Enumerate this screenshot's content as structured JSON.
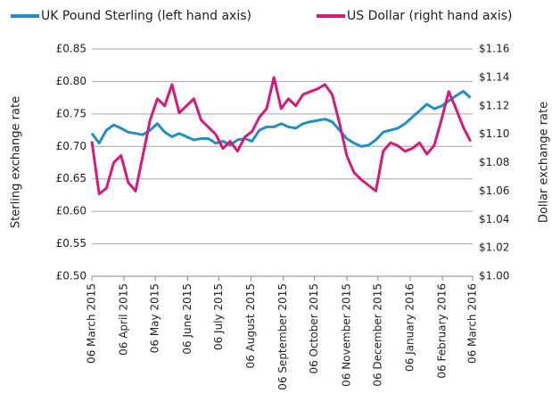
{
  "chart_data": {
    "type": "line",
    "y_label": "Sterling exchange rate",
    "y2_label": "Dollar exchange rate",
    "x": [
      "2015-03-06",
      "2015-03-13",
      "2015-03-20",
      "2015-03-27",
      "2015-04-03",
      "2015-04-10",
      "2015-04-17",
      "2015-04-24",
      "2015-05-01",
      "2015-05-08",
      "2015-05-15",
      "2015-05-22",
      "2015-05-29",
      "2015-06-05",
      "2015-06-12",
      "2015-06-19",
      "2015-06-26",
      "2015-07-03",
      "2015-07-10",
      "2015-07-17",
      "2015-07-24",
      "2015-07-31",
      "2015-08-07",
      "2015-08-14",
      "2015-08-21",
      "2015-08-28",
      "2015-09-04",
      "2015-09-11",
      "2015-09-18",
      "2015-09-25",
      "2015-10-02",
      "2015-10-09",
      "2015-10-16",
      "2015-10-23",
      "2015-10-30",
      "2015-11-06",
      "2015-11-13",
      "2015-11-20",
      "2015-11-27",
      "2015-12-04",
      "2015-12-11",
      "2015-12-18",
      "2015-12-25",
      "2016-01-01",
      "2016-01-08",
      "2016-01-15",
      "2016-01-22",
      "2016-01-29",
      "2016-02-05",
      "2016-02-12",
      "2016-02-19",
      "2016-02-26",
      "2016-03-04"
    ],
    "series": [
      {
        "name": "UK Pound Sterling (left hand axis)",
        "color": "#1f8fc9",
        "axis": "y",
        "values": [
          0.72,
          0.705,
          0.725,
          0.733,
          0.728,
          0.722,
          0.72,
          0.718,
          0.725,
          0.735,
          0.722,
          0.715,
          0.72,
          0.715,
          0.71,
          0.712,
          0.712,
          0.705,
          0.708,
          0.702,
          0.71,
          0.712,
          0.708,
          0.725,
          0.73,
          0.73,
          0.735,
          0.73,
          0.728,
          0.735,
          0.738,
          0.74,
          0.742,
          0.738,
          0.725,
          0.712,
          0.705,
          0.7,
          0.702,
          0.71,
          0.722,
          0.725,
          0.728,
          0.735,
          0.745,
          0.755,
          0.765,
          0.758,
          0.762,
          0.77,
          0.778,
          0.785,
          0.775
        ]
      },
      {
        "name": "US Dollar (right hand axis)",
        "color": "#d6197b",
        "axis": "y2",
        "values": [
          1.095,
          1.058,
          1.062,
          1.08,
          1.085,
          1.066,
          1.06,
          1.085,
          1.11,
          1.125,
          1.12,
          1.135,
          1.115,
          1.12,
          1.125,
          1.11,
          1.105,
          1.1,
          1.09,
          1.095,
          1.088,
          1.098,
          1.102,
          1.112,
          1.118,
          1.14,
          1.118,
          1.125,
          1.12,
          1.128,
          1.13,
          1.132,
          1.135,
          1.128,
          1.108,
          1.085,
          1.073,
          1.068,
          1.064,
          1.06,
          1.088,
          1.094,
          1.092,
          1.088,
          1.09,
          1.094,
          1.086,
          1.092,
          1.11,
          1.13,
          1.118,
          1.105,
          1.095
        ]
      }
    ],
    "xlim": [
      "2015-03-06",
      "2016-03-06"
    ],
    "xticks": [
      {
        "value": "2015-03-06",
        "label": "06 March 2015"
      },
      {
        "value": "2015-04-06",
        "label": "06 April 2015"
      },
      {
        "value": "2015-05-06",
        "label": "06 May 2015"
      },
      {
        "value": "2015-06-06",
        "label": "06 June 2015"
      },
      {
        "value": "2015-07-06",
        "label": "06 July 2015"
      },
      {
        "value": "2015-08-06",
        "label": "06 August 2015"
      },
      {
        "value": "2015-09-06",
        "label": "06 September 2015"
      },
      {
        "value": "2015-10-06",
        "label": "06 October 2015"
      },
      {
        "value": "2015-11-06",
        "label": "06 November 2015"
      },
      {
        "value": "2015-12-06",
        "label": "06 December 2015"
      },
      {
        "value": "2016-01-06",
        "label": "06 January 2016"
      },
      {
        "value": "2016-02-06",
        "label": "06 February 2016"
      },
      {
        "value": "2016-03-06",
        "label": "06 March 2016"
      }
    ],
    "ylim": [
      0.5,
      0.85
    ],
    "yticks": [
      {
        "value": 0.5,
        "label": "£0.50"
      },
      {
        "value": 0.55,
        "label": "£0.55"
      },
      {
        "value": 0.6,
        "label": "£0.60"
      },
      {
        "value": 0.65,
        "label": "£0.65"
      },
      {
        "value": 0.7,
        "label": "£0.70"
      },
      {
        "value": 0.75,
        "label": "£0.75"
      },
      {
        "value": 0.8,
        "label": "£0.80"
      },
      {
        "value": 0.85,
        "label": "£0.85"
      }
    ],
    "y2lim": [
      1.0,
      1.16
    ],
    "y2ticks": [
      {
        "value": 1.0,
        "label": "$1.00"
      },
      {
        "value": 1.02,
        "label": "$1.02"
      },
      {
        "value": 1.04,
        "label": "$1.04"
      },
      {
        "value": 1.06,
        "label": "$1.06"
      },
      {
        "value": 1.08,
        "label": "$1.08"
      },
      {
        "value": 1.1,
        "label": "$1.10"
      },
      {
        "value": 1.12,
        "label": "$1.12"
      },
      {
        "value": 1.14,
        "label": "$1.14"
      },
      {
        "value": 1.16,
        "label": "$1.16"
      }
    ],
    "grid": true,
    "legend": "top"
  }
}
